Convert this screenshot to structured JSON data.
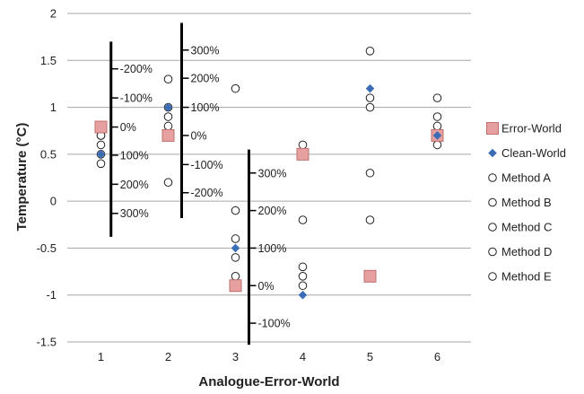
{
  "chart_data": {
    "type": "scatter",
    "title": "",
    "xlabel": "Analogue-Error-World",
    "ylabel": "Temperature (°C)",
    "categories": [
      "1",
      "2",
      "3",
      "4",
      "5",
      "6"
    ],
    "ylim": [
      -1.5,
      2
    ],
    "yticks": [
      -1.5,
      -1,
      -0.5,
      0,
      0.5,
      1,
      1.5,
      2
    ],
    "grid": "horizontal",
    "legend": "right",
    "series": [
      {
        "name": "Error-World",
        "marker": "square",
        "color": "#e6a0a0",
        "x": [
          1,
          2,
          3,
          4,
          5,
          6
        ],
        "values": [
          0.79,
          0.7,
          -0.9,
          0.5,
          -0.8,
          0.7
        ]
      },
      {
        "name": "Clean-World",
        "marker": "diamond",
        "color": "#3a6db5",
        "x": [
          1,
          2,
          3,
          4,
          5,
          6
        ],
        "values": [
          0.5,
          1.0,
          -0.5,
          -1.0,
          1.2,
          0.7
        ]
      },
      {
        "name": "Method A",
        "marker": "circle",
        "color": "#ffffff",
        "x": [
          1,
          2,
          3,
          4,
          5,
          6
        ],
        "values": [
          0.7,
          1.3,
          1.2,
          0.6,
          1.6,
          1.1
        ]
      },
      {
        "name": "Method B",
        "marker": "circle",
        "color": "#ffffff",
        "x": [
          1,
          2,
          3,
          4,
          5,
          6
        ],
        "values": [
          0.6,
          1.0,
          -0.1,
          -0.2,
          1.1,
          0.9
        ]
      },
      {
        "name": "Method C",
        "marker": "circle",
        "color": "#ffffff",
        "x": [
          1,
          2,
          3,
          4,
          5,
          6
        ],
        "values": [
          0.4,
          0.9,
          -0.4,
          -0.7,
          1.0,
          0.8
        ]
      },
      {
        "name": "Method D",
        "marker": "circle",
        "color": "#ffffff",
        "x": [
          1,
          2,
          3,
          4,
          5,
          6
        ],
        "values": [
          0.7,
          0.8,
          -0.6,
          -0.8,
          0.3,
          0.7
        ]
      },
      {
        "name": "Method E",
        "marker": "circle",
        "color": "#ffffff",
        "x": [
          1,
          2,
          3,
          4,
          5,
          6
        ],
        "values": [
          0.5,
          0.2,
          -0.8,
          -0.9,
          -0.2,
          0.6
        ]
      }
    ],
    "annotations": [
      {
        "type": "percent-scale",
        "x": 1.15,
        "y_top": 1.7,
        "y_bottom": -0.38,
        "labels": [
          {
            "text": "-200%",
            "y": 1.41
          },
          {
            "text": "-100%",
            "y": 1.1
          },
          {
            "text": "0%",
            "y": 0.79
          },
          {
            "text": "100%",
            "y": 0.49
          },
          {
            "text": "200%",
            "y": 0.18
          },
          {
            "text": "300%",
            "y": -0.13
          }
        ]
      },
      {
        "type": "percent-scale",
        "x": 2.2,
        "y_top": 1.9,
        "y_bottom": -0.18,
        "labels": [
          {
            "text": "300%",
            "y": 1.61
          },
          {
            "text": "200%",
            "y": 1.31
          },
          {
            "text": "100%",
            "y": 1.0
          },
          {
            "text": "0%",
            "y": 0.7
          },
          {
            "text": "-100%",
            "y": 0.39
          },
          {
            "text": "-200%",
            "y": 0.09
          }
        ]
      },
      {
        "type": "percent-scale",
        "x": 3.2,
        "y_top": 0.55,
        "y_bottom": -1.53,
        "labels": [
          {
            "text": "300%",
            "y": 0.3
          },
          {
            "text": "200%",
            "y": -0.1
          },
          {
            "text": "100%",
            "y": -0.5
          },
          {
            "text": "0%",
            "y": -0.9
          },
          {
            "text": "-100%",
            "y": -1.3
          }
        ]
      }
    ]
  }
}
